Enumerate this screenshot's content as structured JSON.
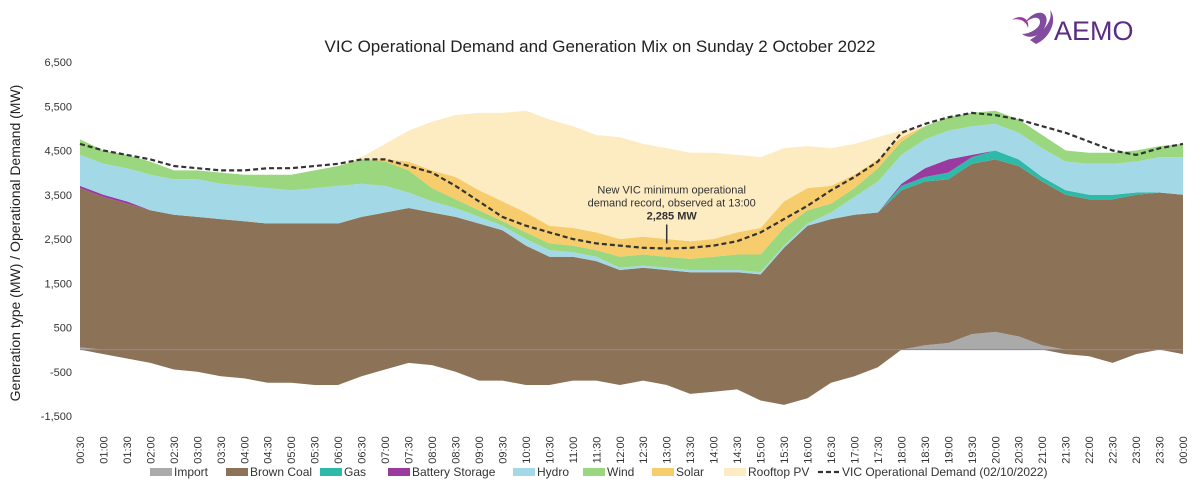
{
  "logo": {
    "text": "AEMO",
    "color": "#6b2c8f"
  },
  "chart_data": {
    "type": "area",
    "title": "VIC Operational Demand and Generation Mix on Sunday 2 October 2022",
    "ylabel": "Generation type (MW) / Operational Demand (MW)",
    "ylim": [
      -1500,
      6500
    ],
    "yticks": [
      6500,
      5500,
      4500,
      3500,
      2500,
      1500,
      500,
      -500,
      -1500
    ],
    "ytick_labels": [
      "6,500",
      "5,500",
      "4,500",
      "3,500",
      "2,500",
      "1,500",
      "500",
      "-500",
      "-1,500"
    ],
    "x": [
      "00:30",
      "01:00",
      "01:30",
      "02:00",
      "02:30",
      "03:00",
      "03:30",
      "04:00",
      "04:30",
      "05:00",
      "05:30",
      "06:00",
      "06:30",
      "07:00",
      "07:30",
      "08:00",
      "08:30",
      "09:00",
      "09:30",
      "10:00",
      "10:30",
      "11:00",
      "11:30",
      "12:00",
      "12:30",
      "13:00",
      "13:30",
      "14:00",
      "14:30",
      "15:00",
      "15:30",
      "16:00",
      "16:30",
      "17:00",
      "17:30",
      "18:00",
      "18:30",
      "19:00",
      "19:30",
      "20:00",
      "20:30",
      "21:00",
      "21:30",
      "22:00",
      "22:30",
      "23:00",
      "23:30",
      "00:00"
    ],
    "grid": false,
    "legend_position": "bottom",
    "series": [
      {
        "name": "Import",
        "color": "#aaaaaa",
        "kind": "stack",
        "values": [
          50,
          0,
          0,
          0,
          0,
          0,
          0,
          0,
          0,
          0,
          0,
          0,
          0,
          0,
          0,
          0,
          0,
          0,
          0,
          0,
          0,
          0,
          0,
          0,
          0,
          0,
          0,
          0,
          0,
          0,
          0,
          0,
          0,
          0,
          0,
          0,
          100,
          150,
          350,
          400,
          300,
          100,
          0,
          0,
          0,
          0,
          0,
          0
        ]
      },
      {
        "name": "Brown Coal",
        "color": "#8c7358",
        "kind": "stack",
        "values": [
          3600,
          3450,
          3300,
          3150,
          3050,
          3000,
          2950,
          2900,
          2850,
          2850,
          2850,
          2850,
          3000,
          3100,
          3200,
          3100,
          3000,
          2850,
          2700,
          2350,
          2100,
          2100,
          2000,
          1800,
          1850,
          1800,
          1750,
          1750,
          1750,
          1700,
          2300,
          2800,
          2950,
          3050,
          3100,
          3600,
          3700,
          3700,
          3850,
          3900,
          3850,
          3700,
          3500,
          3400,
          3400,
          3500,
          3550,
          3500
        ],
        "neg_values": [
          0,
          -100,
          -200,
          -300,
          -450,
          -500,
          -600,
          -650,
          -750,
          -750,
          -800,
          -800,
          -600,
          -450,
          -300,
          -350,
          -500,
          -700,
          -700,
          -800,
          -800,
          -700,
          -700,
          -800,
          -700,
          -800,
          -1000,
          -950,
          -900,
          -1150,
          -1250,
          -1100,
          -750,
          -600,
          -400,
          0,
          0,
          0,
          0,
          0,
          0,
          0,
          -100,
          -150,
          -300,
          -100,
          0,
          -100
        ]
      },
      {
        "name": "Gas",
        "color": "#2ebaa9",
        "kind": "stack",
        "values": [
          0,
          0,
          0,
          0,
          0,
          0,
          0,
          0,
          0,
          0,
          0,
          0,
          0,
          0,
          0,
          0,
          0,
          0,
          0,
          0,
          0,
          0,
          0,
          0,
          0,
          0,
          0,
          0,
          0,
          0,
          0,
          0,
          0,
          0,
          0,
          100,
          100,
          150,
          150,
          200,
          150,
          100,
          100,
          100,
          100,
          50,
          0,
          0
        ]
      },
      {
        "name": "Battery Storage",
        "color": "#9b3a9e",
        "kind": "stack",
        "values": [
          50,
          50,
          50,
          0,
          0,
          0,
          0,
          0,
          0,
          0,
          0,
          0,
          0,
          0,
          0,
          0,
          0,
          0,
          0,
          0,
          0,
          0,
          0,
          0,
          0,
          0,
          0,
          0,
          0,
          0,
          0,
          0,
          0,
          0,
          0,
          50,
          200,
          300,
          50,
          0,
          0,
          0,
          0,
          0,
          0,
          0,
          0,
          0
        ]
      },
      {
        "name": "Hydro",
        "color": "#a3d9e6",
        "kind": "stack",
        "values": [
          700,
          700,
          750,
          800,
          800,
          850,
          800,
          800,
          800,
          750,
          800,
          850,
          750,
          600,
          350,
          250,
          200,
          150,
          100,
          150,
          150,
          100,
          100,
          50,
          50,
          50,
          50,
          50,
          50,
          50,
          50,
          50,
          150,
          400,
          700,
          650,
          650,
          650,
          650,
          600,
          600,
          650,
          650,
          700,
          700,
          700,
          800,
          850
        ]
      },
      {
        "name": "Wind",
        "color": "#9ad77e",
        "kind": "stack",
        "values": [
          350,
          300,
          300,
          300,
          200,
          200,
          250,
          250,
          300,
          350,
          400,
          450,
          550,
          550,
          500,
          300,
          200,
          150,
          100,
          150,
          150,
          150,
          150,
          250,
          250,
          250,
          250,
          300,
          350,
          400,
          400,
          300,
          200,
          200,
          300,
          300,
          300,
          300,
          300,
          300,
          300,
          300,
          250,
          250,
          250,
          250,
          250,
          300
        ]
      },
      {
        "name": "Solar",
        "color": "#f7cc6c",
        "kind": "stack",
        "values": [
          0,
          0,
          0,
          0,
          0,
          0,
          0,
          0,
          0,
          0,
          0,
          0,
          0,
          50,
          200,
          400,
          500,
          450,
          450,
          450,
          400,
          400,
          400,
          400,
          400,
          400,
          400,
          400,
          500,
          600,
          600,
          500,
          400,
          300,
          200,
          100,
          0,
          0,
          0,
          0,
          0,
          0,
          0,
          0,
          0,
          0,
          0,
          0
        ]
      },
      {
        "name": "Rooftop PV",
        "color": "#fdebc1",
        "kind": "stack",
        "values": [
          0,
          0,
          0,
          0,
          0,
          0,
          0,
          0,
          0,
          0,
          0,
          0,
          50,
          350,
          700,
          1100,
          1400,
          1750,
          2000,
          2300,
          2400,
          2300,
          2200,
          2300,
          2100,
          2050,
          2000,
          1950,
          1750,
          1600,
          1200,
          950,
          850,
          700,
          500,
          150,
          0,
          0,
          0,
          0,
          0,
          0,
          0,
          0,
          0,
          0,
          0,
          0
        ]
      },
      {
        "name": "VIC Operational Demand (02/10/2022)",
        "color": "#333333",
        "kind": "line",
        "values": [
          4650,
          4500,
          4400,
          4300,
          4150,
          4100,
          4050,
          4050,
          4100,
          4100,
          4150,
          4200,
          4300,
          4300,
          4150,
          4000,
          3700,
          3350,
          3000,
          2800,
          2650,
          2500,
          2400,
          2350,
          2300,
          2285,
          2300,
          2350,
          2450,
          2650,
          2950,
          3250,
          3600,
          3900,
          4250,
          4900,
          5100,
          5250,
          5350,
          5300,
          5200,
          5050,
          4900,
          4700,
          4500,
          4400,
          4550,
          4650
        ]
      }
    ],
    "annotation": {
      "text_line1": "New VIC minimum operational",
      "text_line2": "demand record, observed at 13:00",
      "value": "2,285 MW",
      "x": "13:00",
      "y": 2285
    }
  }
}
